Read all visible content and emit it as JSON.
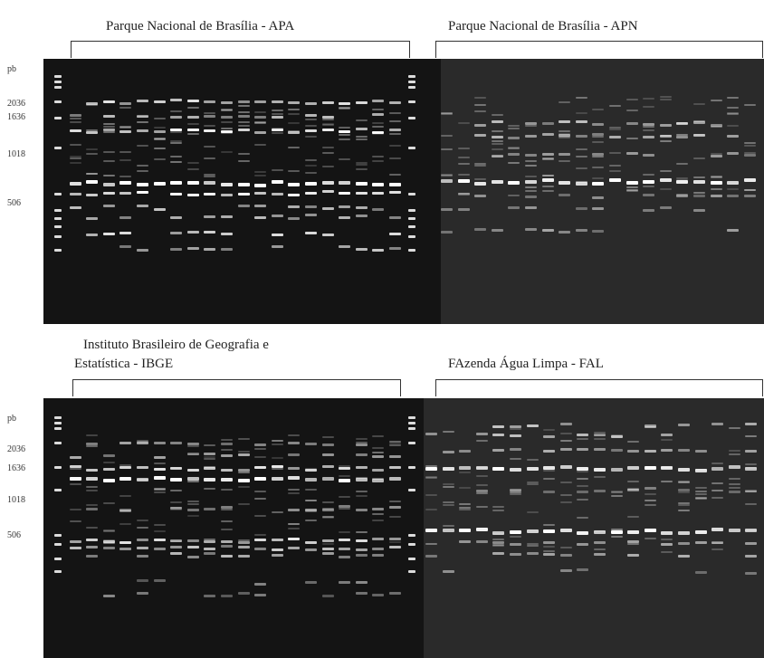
{
  "panels": [
    {
      "id": "apa",
      "title": "Parque Nacional de Brasília - APA"
    },
    {
      "id": "apn",
      "title": "Parque Nacional de Brasília - APN"
    },
    {
      "id": "ibge",
      "title_line1": "Instituto Brasileiro de Geografia e",
      "title_line2": "Estatística - IBGE"
    },
    {
      "id": "fal",
      "title": "FAzenda Água Limpa - FAL"
    }
  ],
  "ladder": {
    "unit": "pb",
    "sizes": [
      "2036",
      "1636",
      "1018",
      "506"
    ]
  },
  "colors": {
    "gel_dark": "#141414",
    "gel_light": "#2b2b2b",
    "band": "#ffffff"
  }
}
